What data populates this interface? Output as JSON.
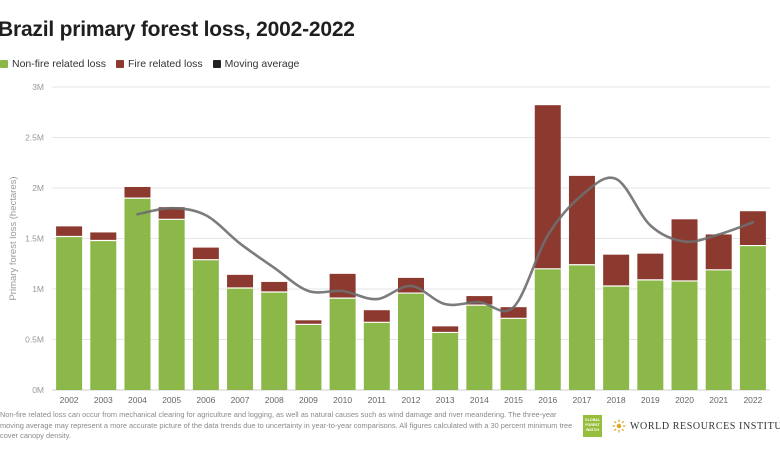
{
  "header": {
    "title": "Brazil primary forest loss, 2002-2022"
  },
  "legend": [
    {
      "label": "Non-fire related loss",
      "color": "#8cb84a"
    },
    {
      "label": "Fire related loss",
      "color": "#8c3a30"
    },
    {
      "label": "Moving average",
      "color": "#222222"
    }
  ],
  "footer": {
    "note": "Non-fire related loss can occur from mechanical clearing for agriculture and logging, as well as natural causes such as wind damage and river meandering. The three-year moving average may represent a more accurate picture of the data trends due to uncertainty in year-to-year comparisons. All figures calculated with a 30 percent minimum tree cover canopy density.",
    "gw_logo_text": "GLOBAL FOREST WATCH",
    "wri_logo_text": "WORLD RESOURCES INSTITUTE"
  },
  "chart_data": {
    "type": "bar",
    "stacked": true,
    "title": "Brazil primary forest loss, 2002-2022",
    "ylabel": "Primary forest loss (hectares)",
    "xlabel": "",
    "ylim": [
      0,
      3000000
    ],
    "yticks": [
      0,
      500000,
      1000000,
      1500000,
      2000000,
      2500000,
      3000000
    ],
    "ytick_labels": [
      "0M",
      "0.5M",
      "1M",
      "1.5M",
      "2M",
      "2.5M",
      "3M"
    ],
    "grid": true,
    "legend_position": "top-left",
    "categories": [
      "2002",
      "2003",
      "2004",
      "2005",
      "2006",
      "2007",
      "2008",
      "2009",
      "2010",
      "2011",
      "2012",
      "2013",
      "2014",
      "2015",
      "2016",
      "2017",
      "2018",
      "2019",
      "2020",
      "2021",
      "2022"
    ],
    "series": [
      {
        "name": "Non-fire related loss",
        "color": "#8cb84a",
        "values": [
          1520000,
          1480000,
          1900000,
          1690000,
          1290000,
          1010000,
          970000,
          650000,
          910000,
          670000,
          960000,
          570000,
          840000,
          710000,
          1200000,
          1240000,
          1030000,
          1090000,
          1080000,
          1190000,
          1430000
        ]
      },
      {
        "name": "Fire related loss",
        "color": "#8c3a30",
        "values": [
          100000,
          80000,
          110000,
          120000,
          120000,
          130000,
          100000,
          40000,
          240000,
          120000,
          150000,
          60000,
          90000,
          110000,
          1620000,
          880000,
          310000,
          260000,
          610000,
          350000,
          340000
        ]
      }
    ],
    "moving_average": {
      "name": "Moving average",
      "color": "#6e6e6e",
      "x": [
        "2004",
        "2005",
        "2006",
        "2007",
        "2008",
        "2009",
        "2010",
        "2011",
        "2012",
        "2013",
        "2014",
        "2015",
        "2016",
        "2017",
        "2018",
        "2019",
        "2020",
        "2021",
        "2022"
      ],
      "values": [
        1740000,
        1800000,
        1730000,
        1450000,
        1210000,
        980000,
        980000,
        900000,
        1030000,
        850000,
        870000,
        820000,
        1530000,
        1930000,
        2090000,
        1630000,
        1470000,
        1540000,
        1660000
      ]
    }
  }
}
